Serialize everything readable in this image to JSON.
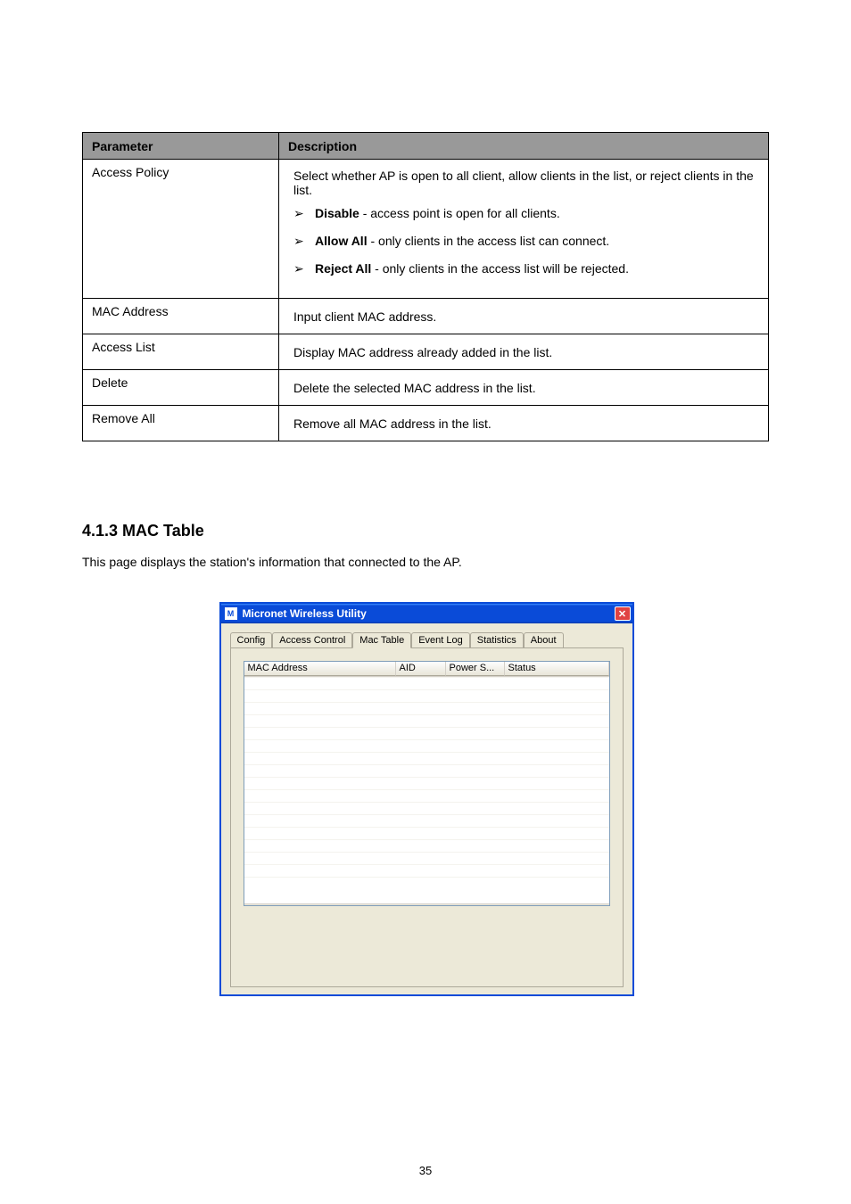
{
  "table": {
    "headers": {
      "param": "Parameter",
      "desc": "Description"
    },
    "rows": [
      {
        "param": "Access Policy",
        "intro": "Select whether AP is open to all client, allow clients in the list, or reject clients in the list.",
        "items": [
          {
            "label": "Disable",
            "text": "access point is open for all clients."
          },
          {
            "label": "Allow All",
            "text": "only clients in the access list can connect."
          },
          {
            "label": "Reject All",
            "text": "only clients in the access list will be rejected."
          }
        ]
      },
      {
        "param": "MAC Address",
        "desc": "Input client MAC address."
      },
      {
        "param": "Access List",
        "desc": "Display MAC address already added in the list."
      },
      {
        "param": "Delete",
        "desc": "Delete the selected MAC address in the list."
      },
      {
        "param": "Remove All",
        "desc": "Remove all MAC address in the list."
      }
    ]
  },
  "section": {
    "title": "4.1.3 MAC Table",
    "text": "This page displays the station's information that connected to the AP."
  },
  "window": {
    "title": "Micronet Wireless Utility",
    "tabs": [
      "Config",
      "Access Control",
      "Mac Table",
      "Event Log",
      "Statistics",
      "About"
    ],
    "activeTab": 2,
    "columns": {
      "mac": "MAC Address",
      "aid": "AID",
      "power": "Power S...",
      "status": "Status"
    }
  },
  "pageNumber": "35"
}
